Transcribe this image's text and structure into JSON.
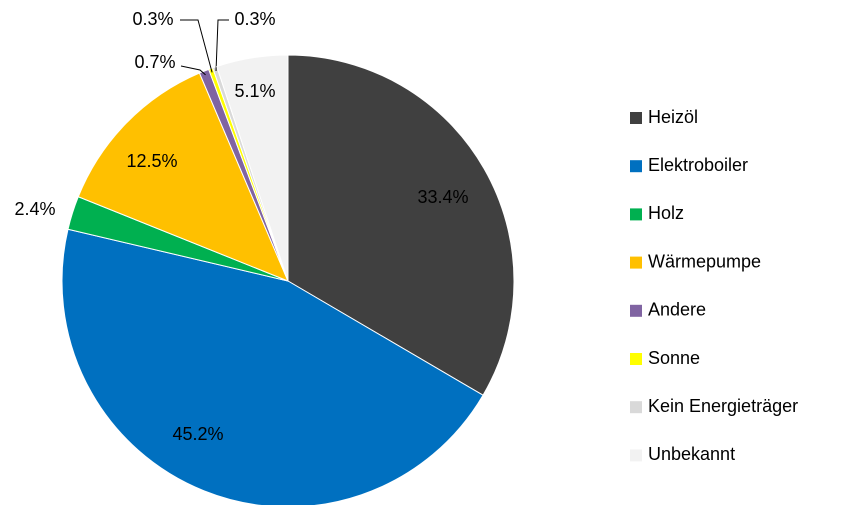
{
  "chart_data": {
    "type": "pie",
    "categories": [
      "Heizöl",
      "Elektroboiler",
      "Holz",
      "Wärmepumpe",
      "Andere",
      "Sonne",
      "Kein Energieträger",
      "Unbekannt"
    ],
    "values": [
      33.4,
      45.2,
      2.4,
      12.5,
      0.7,
      0.3,
      0.3,
      5.1
    ],
    "value_labels": [
      "33.4%",
      "45.2%",
      "2.4%",
      "12.5%",
      "0.7%",
      "0.3%",
      "0.3%",
      "5.1%"
    ],
    "colors": [
      "#404040",
      "#0070c0",
      "#00b050",
      "#ffc000",
      "#8064a2",
      "#ffff00",
      "#d9d9d9",
      "#f2f2f2"
    ],
    "legend": "right"
  }
}
